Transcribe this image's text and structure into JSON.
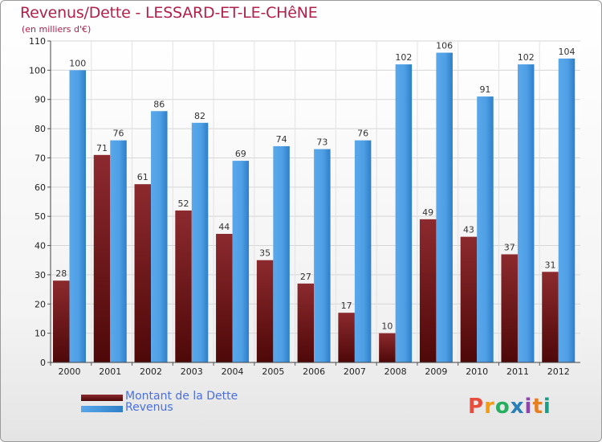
{
  "chart_data": {
    "type": "bar",
    "title": "Revenus/Dette - LESSARD-ET-LE-CHêNE",
    "subtitle": "(en milliers d'€)",
    "categories": [
      "2000",
      "2001",
      "2002",
      "2003",
      "2004",
      "2005",
      "2006",
      "2007",
      "2008",
      "2009",
      "2010",
      "2011",
      "2012"
    ],
    "series": [
      {
        "name": "Montant de la Dette",
        "color": "#7a1e22",
        "values": [
          28,
          71,
          61,
          52,
          44,
          35,
          27,
          17,
          10,
          49,
          43,
          37,
          31
        ]
      },
      {
        "name": "Revenus",
        "color": "#3d8fd8",
        "values": [
          100,
          76,
          86,
          82,
          69,
          74,
          73,
          76,
          102,
          106,
          91,
          102,
          104
        ]
      }
    ],
    "ylim": [
      0,
      110
    ],
    "yticks": [
      0,
      10,
      20,
      30,
      40,
      50,
      60,
      70,
      80,
      90,
      100,
      110
    ],
    "grid": true,
    "legend": "bottom-left",
    "xlabel": "",
    "ylabel": ""
  },
  "logo": {
    "letters": [
      "P",
      "r",
      "o",
      "x",
      "i",
      "t",
      "i"
    ],
    "colors": [
      "#e84c3d",
      "#f39c12",
      "#27ae60",
      "#2980b9",
      "#8e44ad",
      "#e67e22",
      "#16a085"
    ]
  }
}
